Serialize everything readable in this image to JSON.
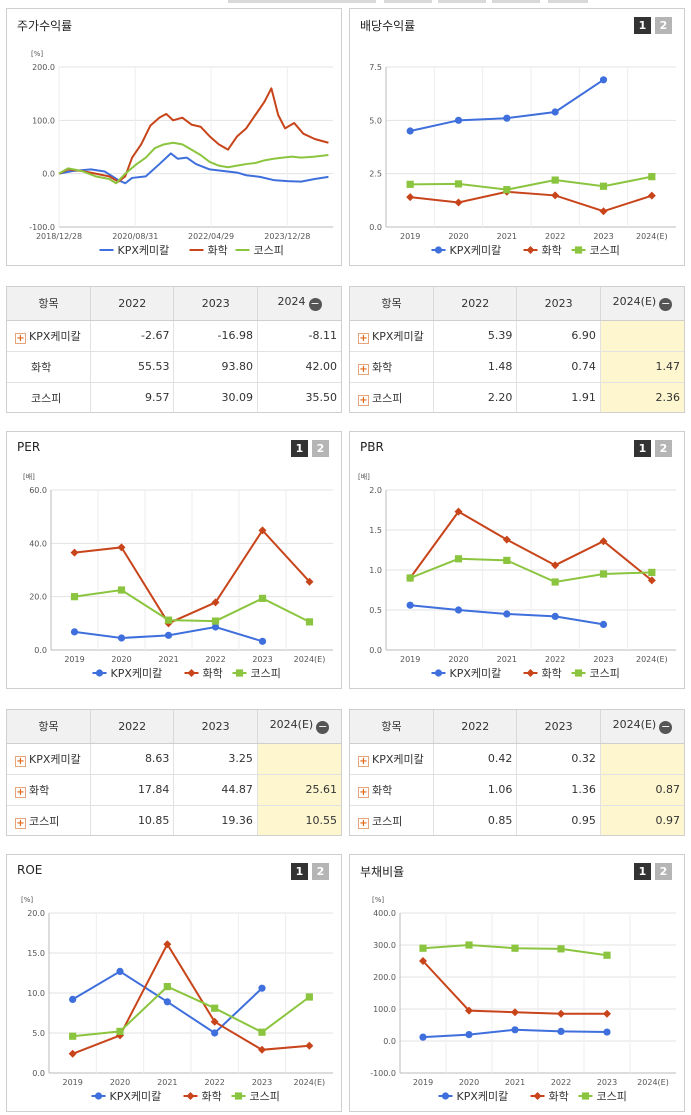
{
  "colors": {
    "kpx": "#3f6fdc",
    "chem": "#c8441a",
    "kospi": "#8bc53f"
  },
  "icons": {
    "expand": "plus-box-icon",
    "collapse": "minus-circle-icon"
  },
  "stock": {
    "title": "주가수익률",
    "unit": "[%]",
    "x_labels": [
      "2018/12/28",
      "2020/08/31",
      "2022/04/29",
      "2023/12/28"
    ],
    "legend": [
      "KPX케미칼",
      "화학",
      "코스피"
    ],
    "table": {
      "headers": [
        "항목",
        "2022",
        "2023",
        "2024"
      ],
      "rows": [
        {
          "label": "KPX케미칼",
          "values": [
            "-2.67",
            "-16.98",
            "-8.11"
          ]
        },
        {
          "label": "화학",
          "values": [
            "55.53",
            "93.80",
            "42.00"
          ]
        },
        {
          "label": "코스피",
          "values": [
            "9.57",
            "30.09",
            "35.50"
          ]
        }
      ]
    }
  },
  "dividend": {
    "title": "배당수익률",
    "btn1": "1",
    "btn2": "2",
    "legend": [
      "KPX케미칼",
      "화학",
      "코스피"
    ],
    "table": {
      "headers": [
        "항목",
        "2022",
        "2023",
        "2024(E)"
      ],
      "rows": [
        {
          "label": "KPX케미칼",
          "values": [
            "5.39",
            "6.90",
            ""
          ]
        },
        {
          "label": "화학",
          "values": [
            "1.48",
            "0.74",
            "1.47"
          ]
        },
        {
          "label": "코스피",
          "values": [
            "2.20",
            "1.91",
            "2.36"
          ]
        }
      ]
    }
  },
  "per": {
    "title": "PER",
    "btn1": "1",
    "btn2": "2",
    "unit": "[배]",
    "legend": [
      "KPX케미칼",
      "화학",
      "코스피"
    ],
    "table": {
      "headers": [
        "항목",
        "2022",
        "2023",
        "2024(E)"
      ],
      "rows": [
        {
          "label": "KPX케미칼",
          "values": [
            "8.63",
            "3.25",
            ""
          ]
        },
        {
          "label": "화학",
          "values": [
            "17.84",
            "44.87",
            "25.61"
          ]
        },
        {
          "label": "코스피",
          "values": [
            "10.85",
            "19.36",
            "10.55"
          ]
        }
      ]
    }
  },
  "pbr": {
    "title": "PBR",
    "btn1": "1",
    "btn2": "2",
    "unit": "[배]",
    "legend": [
      "KPX케미칼",
      "화학",
      "코스피"
    ],
    "table": {
      "headers": [
        "항목",
        "2022",
        "2023",
        "2024(E)"
      ],
      "rows": [
        {
          "label": "KPX케미칼",
          "values": [
            "0.42",
            "0.32",
            ""
          ]
        },
        {
          "label": "화학",
          "values": [
            "1.06",
            "1.36",
            "0.87"
          ]
        },
        {
          "label": "코스피",
          "values": [
            "0.85",
            "0.95",
            "0.97"
          ]
        }
      ]
    }
  },
  "roe": {
    "title": "ROE",
    "btn1": "1",
    "btn2": "2",
    "unit": "[%]",
    "legend": [
      "KPX케미칼",
      "화학",
      "코스피"
    ]
  },
  "debt": {
    "title": "부채비율",
    "btn1": "1",
    "btn2": "2",
    "unit": "[%]",
    "legend": [
      "KPX케미칼",
      "화학",
      "코스피"
    ]
  },
  "chart_data": [
    {
      "id": "stock",
      "type": "line",
      "title": "주가수익률",
      "ylabel": "[%]",
      "ylim": [
        -100,
        200
      ],
      "yticks": [
        "-100.0",
        "0.0",
        "100.0",
        "200.0"
      ],
      "x_range": [
        "2018-12-28",
        "2024-12"
      ],
      "series": [
        {
          "name": "KPX케미칼",
          "points": [
            [
              2019.0,
              0
            ],
            [
              2019.3,
              5
            ],
            [
              2019.7,
              8
            ],
            [
              2020.0,
              4
            ],
            [
              2020.3,
              -12
            ],
            [
              2020.45,
              -18
            ],
            [
              2020.6,
              -8
            ],
            [
              2020.9,
              -5
            ],
            [
              2021.2,
              18
            ],
            [
              2021.45,
              38
            ],
            [
              2021.6,
              28
            ],
            [
              2021.8,
              30
            ],
            [
              2022.0,
              18
            ],
            [
              2022.3,
              8
            ],
            [
              2022.6,
              5
            ],
            [
              2022.9,
              2
            ],
            [
              2023.1,
              -3
            ],
            [
              2023.4,
              -6
            ],
            [
              2023.7,
              -12
            ],
            [
              2024.0,
              -14
            ],
            [
              2024.3,
              -15
            ],
            [
              2024.6,
              -10
            ],
            [
              2024.9,
              -6
            ]
          ]
        },
        {
          "name": "화학",
          "points": [
            [
              2019.0,
              0
            ],
            [
              2019.2,
              8
            ],
            [
              2019.5,
              5
            ],
            [
              2019.8,
              0
            ],
            [
              2020.1,
              -5
            ],
            [
              2020.3,
              -15
            ],
            [
              2020.45,
              -5
            ],
            [
              2020.6,
              30
            ],
            [
              2020.8,
              55
            ],
            [
              2021.0,
              90
            ],
            [
              2021.2,
              105
            ],
            [
              2021.35,
              112
            ],
            [
              2021.5,
              100
            ],
            [
              2021.7,
              105
            ],
            [
              2021.9,
              92
            ],
            [
              2022.1,
              88
            ],
            [
              2022.3,
              70
            ],
            [
              2022.5,
              55
            ],
            [
              2022.7,
              45
            ],
            [
              2022.9,
              70
            ],
            [
              2023.1,
              85
            ],
            [
              2023.3,
              110
            ],
            [
              2023.5,
              135
            ],
            [
              2023.65,
              160
            ],
            [
              2023.8,
              110
            ],
            [
              2023.95,
              85
            ],
            [
              2024.15,
              95
            ],
            [
              2024.35,
              75
            ],
            [
              2024.6,
              65
            ],
            [
              2024.9,
              58
            ]
          ]
        },
        {
          "name": "코스피",
          "points": [
            [
              2019.0,
              0
            ],
            [
              2019.2,
              10
            ],
            [
              2019.5,
              5
            ],
            [
              2019.8,
              -5
            ],
            [
              2020.1,
              -10
            ],
            [
              2020.25,
              -18
            ],
            [
              2020.45,
              0
            ],
            [
              2020.7,
              18
            ],
            [
              2020.9,
              30
            ],
            [
              2021.1,
              48
            ],
            [
              2021.3,
              55
            ],
            [
              2021.5,
              58
            ],
            [
              2021.7,
              55
            ],
            [
              2021.9,
              45
            ],
            [
              2022.1,
              35
            ],
            [
              2022.3,
              22
            ],
            [
              2022.5,
              15
            ],
            [
              2022.7,
              12
            ],
            [
              2022.9,
              15
            ],
            [
              2023.1,
              18
            ],
            [
              2023.3,
              20
            ],
            [
              2023.5,
              25
            ],
            [
              2023.7,
              28
            ],
            [
              2023.9,
              30
            ],
            [
              2024.1,
              32
            ],
            [
              2024.3,
              30
            ],
            [
              2024.6,
              32
            ],
            [
              2024.9,
              35
            ]
          ]
        }
      ]
    },
    {
      "id": "dividend",
      "type": "line",
      "title": "배당수익률",
      "categories": [
        "2019",
        "2020",
        "2021",
        "2022",
        "2023",
        "2024(E)"
      ],
      "ylim": [
        0,
        7.5
      ],
      "yticks": [
        "0.0",
        "2.5",
        "5.0",
        "7.5"
      ],
      "series": [
        {
          "name": "KPX케미칼",
          "values": [
            4.5,
            5.0,
            5.1,
            5.39,
            6.9,
            null
          ]
        },
        {
          "name": "화학",
          "values": [
            1.4,
            1.15,
            1.65,
            1.48,
            0.74,
            1.47
          ]
        },
        {
          "name": "코스피",
          "values": [
            2.0,
            2.02,
            1.75,
            2.2,
            1.91,
            2.36
          ]
        }
      ]
    },
    {
      "id": "per",
      "type": "line",
      "title": "PER",
      "ylabel": "[배]",
      "categories": [
        "2019",
        "2020",
        "2021",
        "2022",
        "2023",
        "2024(E)"
      ],
      "ylim": [
        0,
        60
      ],
      "yticks": [
        "0.0",
        "20.0",
        "40.0",
        "60.0"
      ],
      "series": [
        {
          "name": "KPX케미칼",
          "values": [
            6.8,
            4.5,
            5.5,
            8.63,
            3.25,
            null
          ]
        },
        {
          "name": "화학",
          "values": [
            36.5,
            38.5,
            10.0,
            17.84,
            44.87,
            25.61
          ]
        },
        {
          "name": "코스피",
          "values": [
            20.0,
            22.5,
            11.2,
            10.85,
            19.36,
            10.55
          ]
        }
      ]
    },
    {
      "id": "pbr",
      "type": "line",
      "title": "PBR",
      "ylabel": "[배]",
      "categories": [
        "2019",
        "2020",
        "2021",
        "2022",
        "2023",
        "2024(E)"
      ],
      "ylim": [
        0,
        2.0
      ],
      "yticks": [
        "0.0",
        "0.5",
        "1.0",
        "1.5",
        "2.0"
      ],
      "series": [
        {
          "name": "KPX케미칼",
          "values": [
            0.56,
            0.5,
            0.45,
            0.42,
            0.32,
            null
          ]
        },
        {
          "name": "화학",
          "values": [
            0.9,
            1.73,
            1.38,
            1.06,
            1.36,
            0.87
          ]
        },
        {
          "name": "코스피",
          "values": [
            0.9,
            1.14,
            1.12,
            0.85,
            0.95,
            0.97
          ]
        }
      ]
    },
    {
      "id": "roe",
      "type": "line",
      "title": "ROE",
      "ylabel": "[%]",
      "categories": [
        "2019",
        "2020",
        "2021",
        "2022",
        "2023",
        "2024(E)"
      ],
      "ylim": [
        0,
        20
      ],
      "yticks": [
        "0.0",
        "5.0",
        "10.0",
        "15.0",
        "20.0"
      ],
      "series": [
        {
          "name": "KPX케미칼",
          "values": [
            9.2,
            12.7,
            8.9,
            5.0,
            10.6,
            null
          ]
        },
        {
          "name": "화학",
          "values": [
            2.4,
            4.7,
            16.1,
            6.4,
            2.9,
            3.4
          ]
        },
        {
          "name": "코스피",
          "values": [
            4.6,
            5.2,
            10.8,
            8.1,
            5.1,
            9.5
          ]
        }
      ]
    },
    {
      "id": "debt",
      "type": "line",
      "title": "부채비율",
      "ylabel": "[%]",
      "categories": [
        "2019",
        "2020",
        "2021",
        "2022",
        "2023",
        "2024(E)"
      ],
      "ylim": [
        -100,
        400
      ],
      "yticks": [
        "-100.0",
        "0.0",
        "100.0",
        "200.0",
        "300.0",
        "400.0"
      ],
      "series": [
        {
          "name": "KPX케미칼",
          "values": [
            12,
            20,
            35,
            30,
            28,
            null
          ]
        },
        {
          "name": "화학",
          "values": [
            250,
            95,
            90,
            85,
            85,
            null
          ]
        },
        {
          "name": "코스피",
          "values": [
            290,
            300,
            290,
            288,
            268,
            null
          ]
        }
      ]
    }
  ]
}
